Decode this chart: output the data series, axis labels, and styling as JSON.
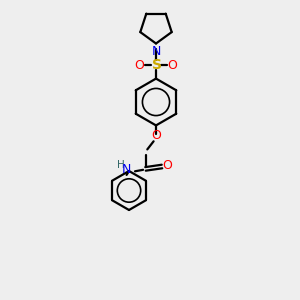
{
  "bg_color": "#eeeeee",
  "black": "#000000",
  "blue": "#0000ee",
  "red": "#ff0000",
  "sulfur_yellow": "#ccaa00",
  "nh_color": "#336666",
  "lw": 1.6,
  "figsize": [
    3.0,
    3.0
  ],
  "dpi": 100,
  "xlim": [
    0,
    6
  ],
  "ylim": [
    0,
    10
  ]
}
